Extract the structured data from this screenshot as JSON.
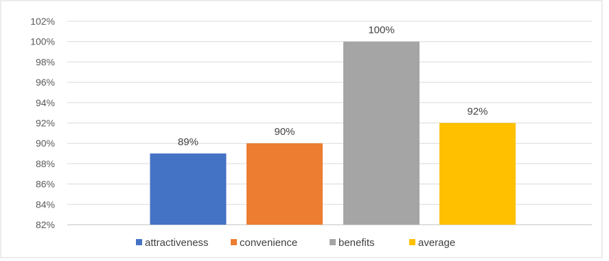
{
  "chart_data": {
    "type": "bar",
    "categories": [
      "attractiveness",
      "convenience",
      "benefits",
      "average"
    ],
    "values": [
      89,
      90,
      100,
      92
    ],
    "data_labels": [
      "89%",
      "90%",
      "100%",
      "92%"
    ],
    "colors": [
      "#4472C4",
      "#ED7D31",
      "#A5A5A5",
      "#FFC000"
    ],
    "ylim": [
      82,
      102
    ],
    "yticks": [
      82,
      84,
      86,
      88,
      90,
      92,
      94,
      96,
      98,
      100,
      102
    ],
    "ytick_labels": [
      "82%",
      "84%",
      "86%",
      "88%",
      "90%",
      "92%",
      "94%",
      "96%",
      "98%",
      "100%",
      "102%"
    ],
    "grid": true,
    "legend": {
      "position": "bottom",
      "entries": [
        "attractiveness",
        "convenience",
        "benefits",
        "average"
      ]
    }
  }
}
